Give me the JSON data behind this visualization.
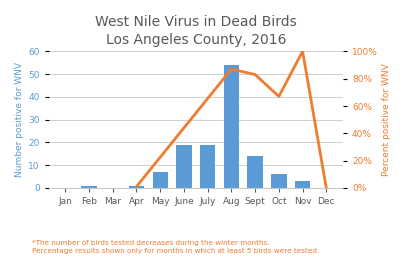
{
  "title": "West Nile Virus in Dead Birds\nLos Angeles County, 2016",
  "months": [
    "Jan",
    "Feb",
    "Mar",
    "Apr",
    "May",
    "June",
    "July",
    "Aug",
    "Sept",
    "Oct",
    "Nov",
    "Dec"
  ],
  "bar_values": [
    0,
    1,
    0,
    1,
    7,
    19,
    19,
    54,
    14,
    6,
    3,
    0
  ],
  "line_x_indices": [
    3,
    7,
    8,
    9,
    10,
    11
  ],
  "line_y_values": [
    1,
    87,
    83,
    67,
    100,
    0
  ],
  "bar_color": "#5b9bd5",
  "line_color": "#ed7d31",
  "ylabel_left": "Number positive for WNV",
  "ylabel_right": "Percent positive for WNV",
  "ylim_left": [
    0,
    60
  ],
  "ylim_right": [
    0,
    100
  ],
  "yticks_left": [
    0,
    10,
    20,
    30,
    40,
    50,
    60
  ],
  "yticks_right": [
    0,
    20,
    40,
    60,
    80,
    100
  ],
  "footnote1": "*The number of birds tested decreases during the winter months.",
  "footnote2": "Percentage results shown only for months in which at least 5 birds were tested.",
  "footnote_color": "#ed7d31",
  "title_color": "#595959",
  "axis_label_color_left": "#5b9bd5",
  "axis_label_color_right": "#ed7d31",
  "background_color": "#ffffff",
  "grid_color": "#c8c8c8",
  "tick_color": "#595959"
}
